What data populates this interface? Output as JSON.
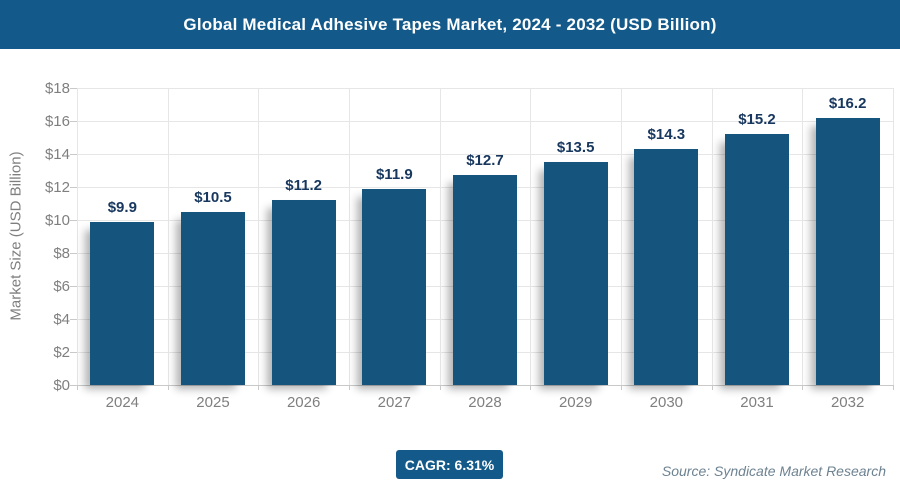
{
  "header": {
    "title": "Global Medical Adhesive Tapes Market, 2024 - 2032 (USD Billion)",
    "background": "#135a8a"
  },
  "chart_data": {
    "type": "bar",
    "title": "Global Medical Adhesive Tapes Market, 2024 - 2032 (USD Billion)",
    "categories": [
      "2024",
      "2025",
      "2026",
      "2027",
      "2028",
      "2029",
      "2030",
      "2031",
      "2032"
    ],
    "values": [
      9.9,
      10.5,
      11.2,
      11.9,
      12.7,
      13.5,
      14.3,
      15.2,
      16.2
    ],
    "value_labels": [
      "$9.9",
      "$10.5",
      "$11.2",
      "$11.9",
      "$12.7",
      "$13.5",
      "$14.3",
      "$15.2",
      "$16.2"
    ],
    "xlabel": "",
    "ylabel": "Market Size (USD Billion)",
    "ylim": [
      0,
      18
    ],
    "ytick_step": 2,
    "ytick_labels": [
      "$0",
      "$2",
      "$4",
      "$6",
      "$8",
      "$10",
      "$12",
      "$14",
      "$16",
      "$18"
    ],
    "grid": true,
    "legend": "none",
    "bar_color": "#15547d",
    "value_label_color": "#17375e",
    "axis_text_color": "#7f7f7f"
  },
  "footer": {
    "cagr_label": "CAGR: 6.31%",
    "cagr_background": "#135a8a",
    "source": "Source: Syndicate Market Research"
  }
}
